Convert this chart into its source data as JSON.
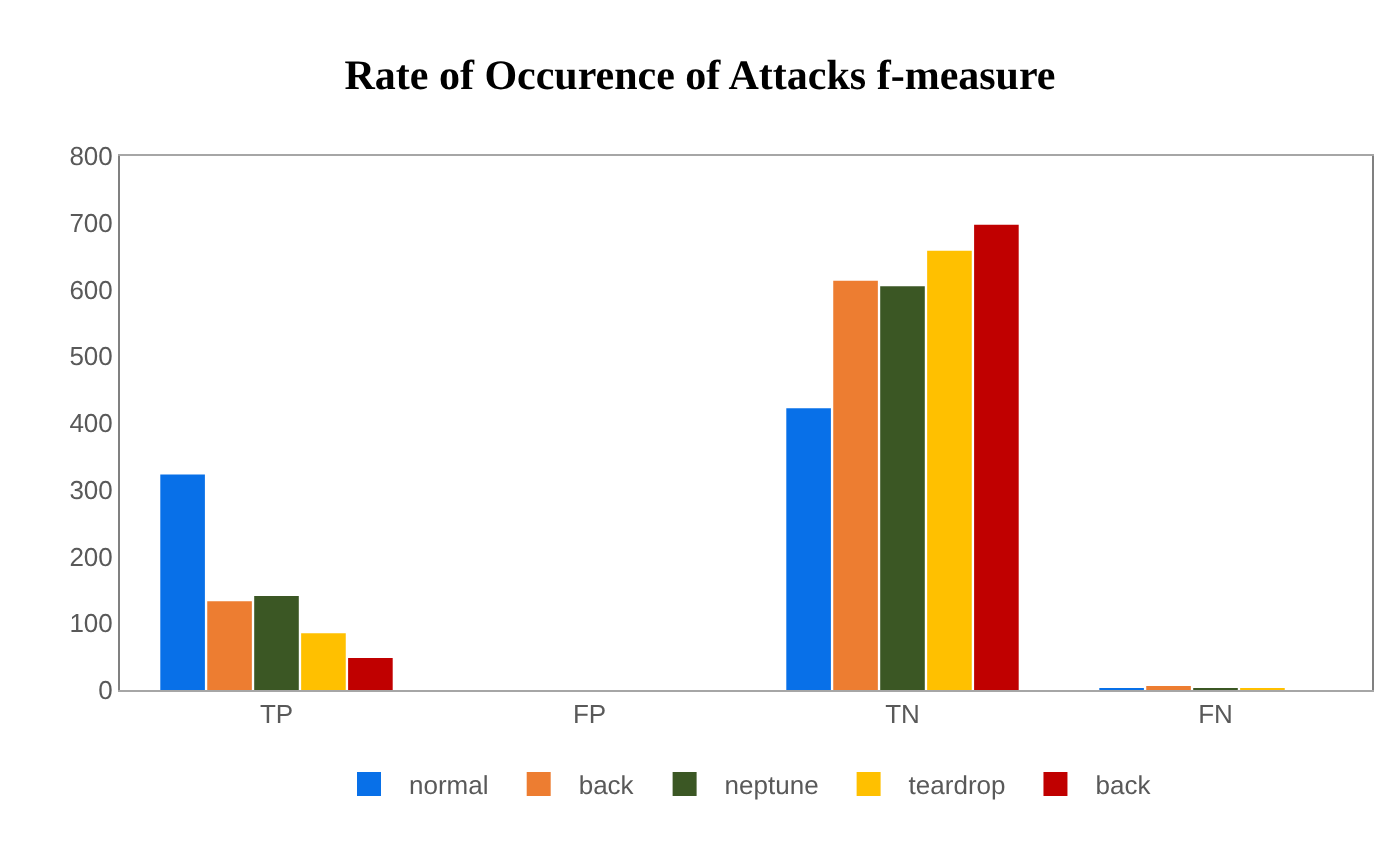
{
  "chart_data": {
    "type": "bar",
    "title": "Rate of Occurence of Attacks f-measure",
    "categories": [
      "TP",
      "FP",
      "TN",
      "FN"
    ],
    "series": [
      {
        "name": "normal",
        "color": "#0870e8",
        "values": [
          323,
          0,
          422,
          3
        ]
      },
      {
        "name": "back",
        "color": "#ed7d31",
        "values": [
          133,
          0,
          613,
          6
        ]
      },
      {
        "name": "neptune",
        "color": "#3b5724",
        "values": [
          141,
          0,
          605,
          3
        ]
      },
      {
        "name": "teardrop",
        "color": "#ffc000",
        "values": [
          85,
          0,
          658,
          2
        ]
      },
      {
        "name": "back",
        "color": "#c00000",
        "values": [
          48,
          0,
          697,
          0
        ]
      }
    ],
    "ylim": [
      0,
      800
    ],
    "yticks": [
      0,
      100,
      200,
      300,
      400,
      500,
      600,
      700,
      800
    ],
    "grid": false,
    "legend": "bottom"
  }
}
